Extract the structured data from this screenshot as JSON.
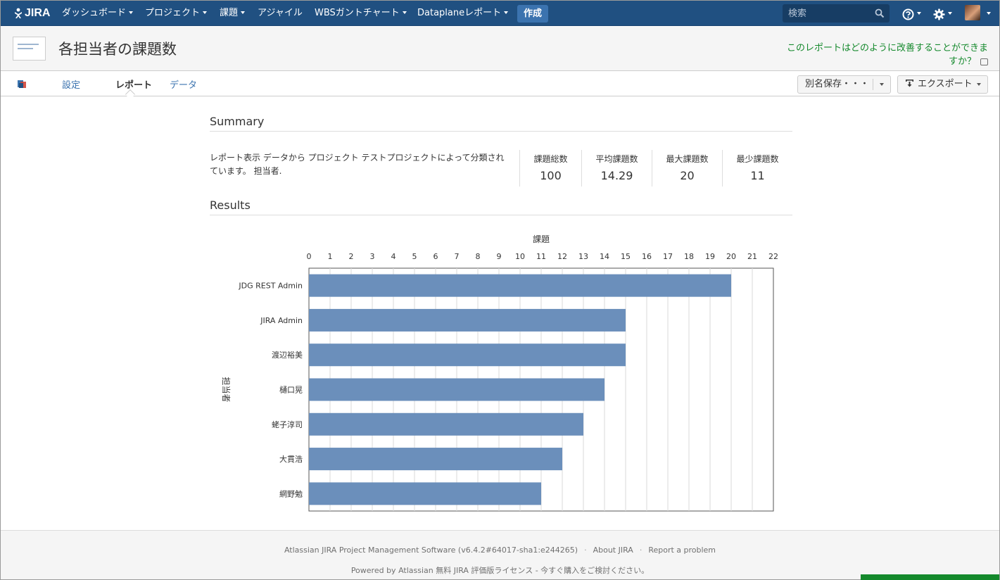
{
  "topnav": {
    "logo_text": "JIRA",
    "items": [
      {
        "label": "ダッシュボード",
        "has_caret": true
      },
      {
        "label": "プロジェクト",
        "has_caret": true
      },
      {
        "label": "課題",
        "has_caret": true
      },
      {
        "label": "アジャイル",
        "has_caret": false
      },
      {
        "label": "WBSガントチャート",
        "has_caret": true
      },
      {
        "label": "Dataplaneレポート",
        "has_caret": true
      }
    ],
    "create_label": "作成",
    "search_placeholder": "検索",
    "colors": {
      "bar": "#205081",
      "create": "#3b73af"
    }
  },
  "header": {
    "title": "各担当者の課題数",
    "feedback_line1": "このレポートはどのように改善することができま",
    "feedback_line2": "すか？"
  },
  "tabs": {
    "settings": "設定",
    "report": "レポート",
    "data": "データ",
    "save_as": "別名保存・・・",
    "export": "エクスポート"
  },
  "summary": {
    "heading": "Summary",
    "description": "レポート表示 データから プロジェクト テストプロジェクトによって分類されています。 担当者.",
    "stats": [
      {
        "label": "課題総数",
        "value": "100"
      },
      {
        "label": "平均課題数",
        "value": "14.29"
      },
      {
        "label": "最大課題数",
        "value": "20"
      },
      {
        "label": "最少課題数",
        "value": "11"
      }
    ]
  },
  "results": {
    "heading": "Results"
  },
  "chart_data": {
    "type": "bar",
    "orientation": "horizontal",
    "xlabel": "課題",
    "ylabel": "担当者",
    "xlim": [
      0,
      22
    ],
    "x_ticks": [
      "0",
      "1",
      "2",
      "3",
      "4",
      "5",
      "6",
      "7",
      "8",
      "9",
      "10",
      "11",
      "12",
      "13",
      "14",
      "15",
      "16",
      "17",
      "18",
      "19",
      "20",
      "21",
      "22"
    ],
    "categories": [
      "JDG REST Admin",
      "JIRA Admin",
      "渡辺裕美",
      "樋口晃",
      "蛯子淳司",
      "大貫浩",
      "網野勉"
    ],
    "values": [
      20,
      15,
      15,
      14,
      13,
      12,
      11
    ],
    "bar_color": "#6b8fbb",
    "grid": true,
    "x_axis_position": "top"
  },
  "footer": {
    "software": "Atlassian JIRA Project Management Software (v6.4.2#64017-sha1:e244265)",
    "about": "About JIRA",
    "report": "Report a problem",
    "powered": "Powered by Atlassian 無料 JIRA 評価版ライセンス - 今すぐ購入をご検討ください。"
  }
}
